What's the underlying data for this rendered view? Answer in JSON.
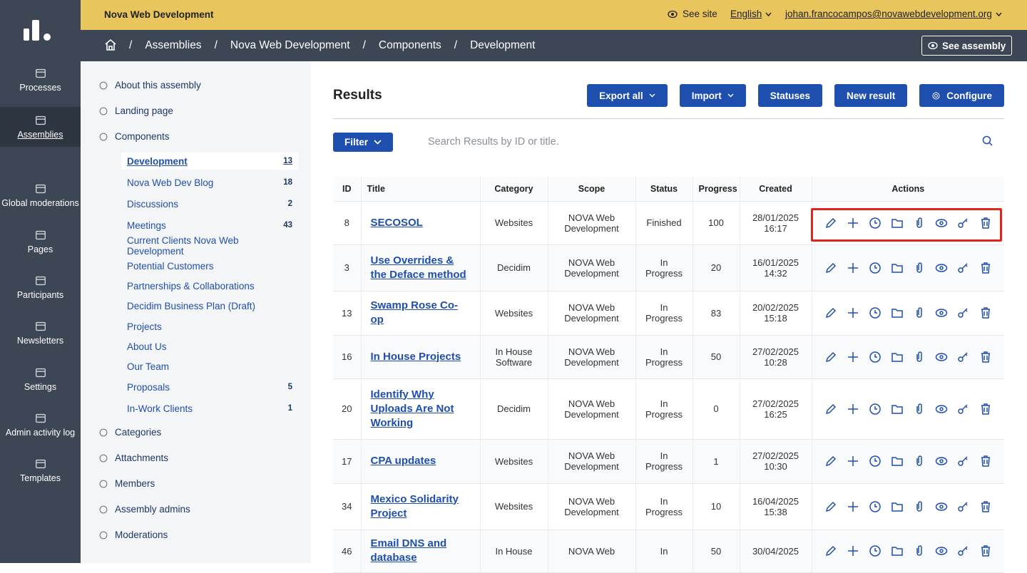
{
  "sidebar": {
    "items": [
      "Processes",
      "Assemblies",
      "Global moderations",
      "Pages",
      "Participants",
      "Newsletters",
      "Settings",
      "Admin activity log",
      "Templates"
    ]
  },
  "topbar": {
    "organization": "Nova Web Development",
    "see_site": "See site",
    "language": "English",
    "user": "johan.francocampos@novawebdevelopment.org"
  },
  "breadcrumb": {
    "separator": "/",
    "items": [
      "Assemblies",
      "Nova Web Development",
      "Components",
      "Development"
    ],
    "see_assembly": "See assembly"
  },
  "secondary_nav": {
    "top": [
      "About this assembly",
      "Landing page",
      "Components"
    ],
    "components": [
      {
        "label": "Development",
        "count": "13"
      },
      {
        "label": "Nova Web Dev Blog",
        "count": "18"
      },
      {
        "label": "Discussions",
        "count": "2"
      },
      {
        "label": "Meetings",
        "count": "43"
      },
      {
        "label": "Current Clients Nova Web Development"
      },
      {
        "label": "Potential Customers"
      },
      {
        "label": "Partnerships & Collaborations"
      },
      {
        "label": "Decidim Business Plan (Draft)"
      },
      {
        "label": "Projects"
      },
      {
        "label": "About Us"
      },
      {
        "label": "Our Team"
      },
      {
        "label": "Proposals",
        "count": "5"
      },
      {
        "label": "In-Work Clients",
        "count": "1"
      }
    ],
    "bottom": [
      "Categories",
      "Attachments",
      "Members",
      "Assembly admins",
      "Moderations"
    ]
  },
  "results": {
    "title": "Results",
    "buttons": [
      "Export all",
      "Import",
      "Statuses",
      "New result",
      "Configure"
    ],
    "filter": "Filter",
    "search_placeholder": "Search Results by ID or title.",
    "table": {
      "columns": [
        "ID",
        "Title",
        "Category",
        "Scope",
        "Status",
        "Progress",
        "Created",
        "Actions"
      ],
      "rows": [
        [
          "8",
          "SECOSOL",
          "Websites",
          "NOVA Web Development",
          "Finished",
          "100",
          "28/01/2025 16:17"
        ],
        [
          "3",
          "Use Overrides & the Deface method",
          "Decidim",
          "NOVA Web Development",
          "In Progress",
          "20",
          "16/01/2025 14:32"
        ],
        [
          "13",
          "Swamp Rose Co-op",
          "Websites",
          "NOVA Web Development",
          "In Progress",
          "83",
          "20/02/2025 15:18"
        ],
        [
          "16",
          "In House Projects",
          "In House Software",
          "NOVA Web Development",
          "In Progress",
          "50",
          "27/02/2025 10:28"
        ],
        [
          "20",
          "Identify Why Uploads Are Not Working",
          "Decidim",
          "NOVA Web Development",
          "In Progress",
          "0",
          "27/02/2025 16:25"
        ],
        [
          "17",
          "CPA updates",
          "Websites",
          "NOVA Web Development",
          "In Progress",
          "1",
          "27/02/2025 10:30"
        ],
        [
          "34",
          "Mexico Solidarity Project",
          "Websites",
          "NOVA Web Development",
          "In Progress",
          "10",
          "16/04/2025 15:38"
        ],
        [
          "46",
          "Email DNS and database",
          "In House",
          "NOVA Web",
          "In",
          "50",
          "30/04/2025"
        ]
      ]
    }
  }
}
